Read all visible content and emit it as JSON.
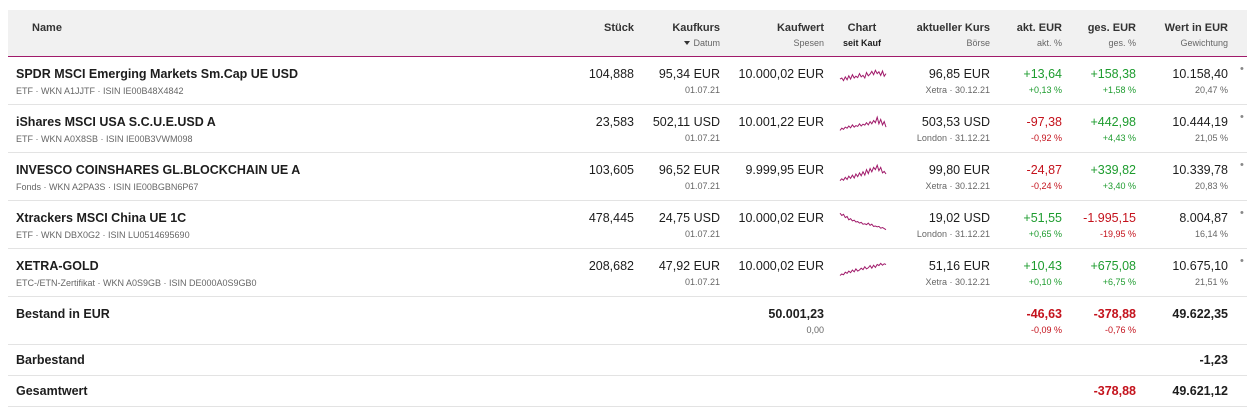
{
  "header": {
    "name": "Name",
    "stueck": "Stück",
    "kaufkurs": "Kaufkurs",
    "datum": "Datum",
    "kaufwert": "Kaufwert",
    "spesen": "Spesen",
    "chart": "Chart",
    "seit_kauf": "seit Kauf",
    "aktueller_kurs": "aktueller Kurs",
    "boerse": "Börse",
    "akt_eur": "akt. EUR",
    "akt_pct": "akt. %",
    "ges_eur": "ges. EUR",
    "ges_pct": "ges. %",
    "wert": "Wert in EUR",
    "gewichtung": "Gewichtung"
  },
  "positions": [
    {
      "name": "SPDR MSCI Emerging Markets Sm.Cap UE USD",
      "meta": "ETF · WKN A1JJTF · ISIN IE00B48X4842",
      "stueck": "104,888",
      "kaufkurs": "95,34 EUR",
      "datum": "01.07.21",
      "kaufwert": "10.000,02 EUR",
      "kurs": "96,85 EUR",
      "boerse": "Xetra · 30.12.21",
      "akt_eur": "+13,64",
      "akt_pct": "+0,13 %",
      "akt_color": "#1e9c2f",
      "ges_eur": "+158,38",
      "ges_pct": "+1,58 %",
      "ges_color": "#1e9c2f",
      "wert": "10.158,40",
      "gewichtung": "20,47 %",
      "spark": [
        0.55,
        0.5,
        0.62,
        0.45,
        0.58,
        0.4,
        0.55,
        0.35,
        0.5,
        0.42,
        0.48,
        0.3,
        0.45,
        0.38,
        0.5,
        0.25,
        0.4,
        0.32,
        0.2,
        0.35,
        0.15,
        0.3,
        0.22,
        0.38,
        0.18,
        0.42,
        0.3
      ]
    },
    {
      "name": "iShares MSCI USA S.C.U.E.USD A",
      "meta": "ETF · WKN A0X8SB · ISIN IE00B3VWM098",
      "stueck": "23,583",
      "kaufkurs": "502,11 USD",
      "datum": "01.07.21",
      "kaufwert": "10.001,22 EUR",
      "kurs": "503,53 USD",
      "boerse": "London · 31.12.21",
      "akt_eur": "-97,38",
      "akt_pct": "-0,92 %",
      "akt_color": "#c4121c",
      "ges_eur": "+442,98",
      "ges_pct": "+4,43 %",
      "ges_color": "#1e9c2f",
      "wert": "10.444,19",
      "gewichtung": "21,05 %",
      "spark": [
        0.7,
        0.6,
        0.65,
        0.55,
        0.6,
        0.5,
        0.58,
        0.45,
        0.55,
        0.48,
        0.52,
        0.4,
        0.5,
        0.42,
        0.46,
        0.35,
        0.45,
        0.3,
        0.4,
        0.25,
        0.35,
        0.1,
        0.4,
        0.2,
        0.45,
        0.3,
        0.55
      ]
    },
    {
      "name": "INVESCO COINSHARES GL.BLOCKCHAIN UE A",
      "meta": "Fonds · WKN A2PA3S · ISIN IE00BGBN6P67",
      "stueck": "103,605",
      "kaufkurs": "96,52 EUR",
      "datum": "01.07.21",
      "kaufwert": "9.999,95 EUR",
      "kurs": "99,80 EUR",
      "boerse": "Xetra · 30.12.21",
      "akt_eur": "-24,87",
      "akt_pct": "-0,24 %",
      "akt_color": "#c4121c",
      "ges_eur": "+339,82",
      "ges_pct": "+3,40 %",
      "ges_color": "#1e9c2f",
      "wert": "10.339,78",
      "gewichtung": "20,83 %",
      "spark": [
        0.8,
        0.72,
        0.78,
        0.65,
        0.75,
        0.6,
        0.7,
        0.55,
        0.68,
        0.5,
        0.62,
        0.45,
        0.58,
        0.4,
        0.55,
        0.3,
        0.48,
        0.25,
        0.4,
        0.2,
        0.3,
        0.1,
        0.35,
        0.2,
        0.45,
        0.38,
        0.5
      ]
    },
    {
      "name": "Xtrackers MSCI China UE 1C",
      "meta": "ETF · WKN DBX0G2 · ISIN LU0514695690",
      "stueck": "478,445",
      "kaufkurs": "24,75 USD",
      "datum": "01.07.21",
      "kaufwert": "10.000,02 EUR",
      "kurs": "19,02 USD",
      "boerse": "London · 31.12.21",
      "akt_eur": "+51,55",
      "akt_pct": "+0,65 %",
      "akt_color": "#1e9c2f",
      "ges_eur": "-1.995,15",
      "ges_pct": "-19,95 %",
      "ges_color": "#c4121c",
      "wert": "8.004,87",
      "gewichtung": "16,14 %",
      "spark": [
        0.1,
        0.2,
        0.15,
        0.3,
        0.25,
        0.4,
        0.35,
        0.45,
        0.42,
        0.5,
        0.48,
        0.55,
        0.52,
        0.6,
        0.58,
        0.62,
        0.55,
        0.65,
        0.6,
        0.7,
        0.68,
        0.72,
        0.7,
        0.78,
        0.75,
        0.8,
        0.85
      ]
    },
    {
      "name": "XETRA-GOLD",
      "meta": "ETC-/ETN-Zertifikat · WKN A0S9GB · ISIN DE000A0S9GB0",
      "stueck": "208,682",
      "kaufkurs": "47,92 EUR",
      "datum": "01.07.21",
      "kaufwert": "10.000,02 EUR",
      "kurs": "51,16 EUR",
      "boerse": "Xetra · 30.12.21",
      "akt_eur": "+10,43",
      "akt_pct": "+0,10 %",
      "akt_color": "#1e9c2f",
      "ges_eur": "+675,08",
      "ges_pct": "+6,75 %",
      "ges_color": "#1e9c2f",
      "wert": "10.675,10",
      "gewichtung": "21,51 %",
      "spark": [
        0.75,
        0.68,
        0.72,
        0.6,
        0.65,
        0.55,
        0.62,
        0.5,
        0.58,
        0.45,
        0.55,
        0.5,
        0.42,
        0.48,
        0.35,
        0.45,
        0.4,
        0.3,
        0.42,
        0.28,
        0.38,
        0.25,
        0.3,
        0.2,
        0.28,
        0.22,
        0.25
      ]
    }
  ],
  "bestand": {
    "label": "Bestand in EUR",
    "kaufwert": "50.001,23",
    "spesen": "0,00",
    "akt_eur": "-46,63",
    "akt_pct": "-0,09 %",
    "ges_eur": "-378,88",
    "ges_pct": "-0,76 %",
    "wert": "49.622,35"
  },
  "barbestand": {
    "label": "Barbestand",
    "wert": "-1,23"
  },
  "gesamtwert": {
    "label": "Gesamtwert",
    "ges_eur": "-378,88",
    "wert": "49.621,12"
  },
  "colors": {
    "accent": "#a01a6a",
    "sparkline": "#a01a6a",
    "positive": "#1e9c2f",
    "negative": "#c4121c"
  },
  "icons": {
    "sort": "sort-desc-icon",
    "more": "more-dots-icon"
  }
}
